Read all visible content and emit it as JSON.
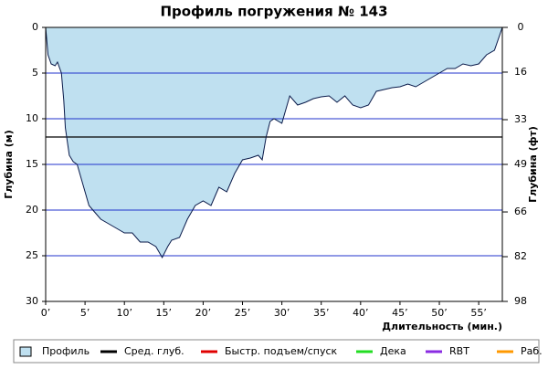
{
  "chart_data": {
    "type": "area",
    "title": "Профиль погружения № 143",
    "y_label": "Глубина (м)",
    "y2_label": "Глубина (фт)",
    "x_label": "Длительность (мин.)",
    "xlim": [
      0,
      58
    ],
    "ylim": [
      0,
      30
    ],
    "y2lim": [
      0,
      98
    ],
    "xticks": [
      {
        "value": 0,
        "label": "0’"
      },
      {
        "value": 5,
        "label": "5’"
      },
      {
        "value": 10,
        "label": "10’"
      },
      {
        "value": 15,
        "label": "15’"
      },
      {
        "value": 20,
        "label": "20’"
      },
      {
        "value": 25,
        "label": "25’"
      },
      {
        "value": 30,
        "label": "30’"
      },
      {
        "value": 35,
        "label": "35’"
      },
      {
        "value": 40,
        "label": "40’"
      },
      {
        "value": 45,
        "label": "45’"
      },
      {
        "value": 50,
        "label": "50’"
      },
      {
        "value": 55,
        "label": "55’"
      }
    ],
    "yticks": [
      0,
      5,
      10,
      15,
      20,
      25,
      30
    ],
    "y2ticks": [
      0,
      16,
      33,
      49,
      66,
      82,
      98
    ],
    "grid": true,
    "inverted_y": true,
    "x": [
      0,
      0.3,
      0.7,
      1.2,
      1.5,
      2,
      2.3,
      2.5,
      3,
      3.5,
      4,
      4.5,
      5,
      5.5,
      6,
      7,
      8,
      9,
      10,
      11,
      12,
      13,
      14,
      14.8,
      15.5,
      16,
      17,
      18,
      19,
      20,
      21,
      22,
      23,
      24,
      25,
      26,
      27,
      27.5,
      28,
      28.5,
      29,
      30,
      31,
      32,
      33,
      34,
      35,
      36,
      37,
      38,
      39,
      40,
      41,
      42,
      43,
      44,
      45,
      46,
      47,
      48,
      49,
      50,
      51,
      52,
      53,
      54,
      55,
      56,
      57,
      58
    ],
    "series": [
      {
        "name": "Профиль",
        "color": "#bfe0f0",
        "line_color": "#0a1a4a",
        "values": [
          0,
          3,
          4,
          4.2,
          3.8,
          5,
          8,
          11,
          14,
          14.7,
          15,
          16.5,
          18,
          19.5,
          20,
          21,
          21.5,
          22,
          22.5,
          22.5,
          23.5,
          23.5,
          24,
          25.2,
          24,
          23.3,
          23,
          21,
          19.5,
          19,
          19.5,
          17.5,
          18,
          16,
          14.5,
          14.3,
          14,
          14.5,
          12,
          10.3,
          10,
          10.5,
          7.5,
          8.5,
          8.2,
          7.8,
          7.6,
          7.5,
          8.2,
          7.5,
          8.5,
          8.8,
          8.5,
          7,
          6.8,
          6.6,
          6.5,
          6.2,
          6.5,
          6,
          5.5,
          5,
          4.5,
          4.5,
          4,
          4.2,
          4,
          3,
          2.5,
          0
        ]
      },
      {
        "name": "Сред. глуб.",
        "color": "#000000",
        "value": 12
      },
      {
        "name": "Быстр. подъем/спуск",
        "color": "#e00000"
      },
      {
        "name": "Дека",
        "color": "#22dd22"
      },
      {
        "name": "RBT",
        "color": "#8a2be2"
      },
      {
        "name": "Раб.",
        "color": "#ff9900"
      }
    ]
  }
}
